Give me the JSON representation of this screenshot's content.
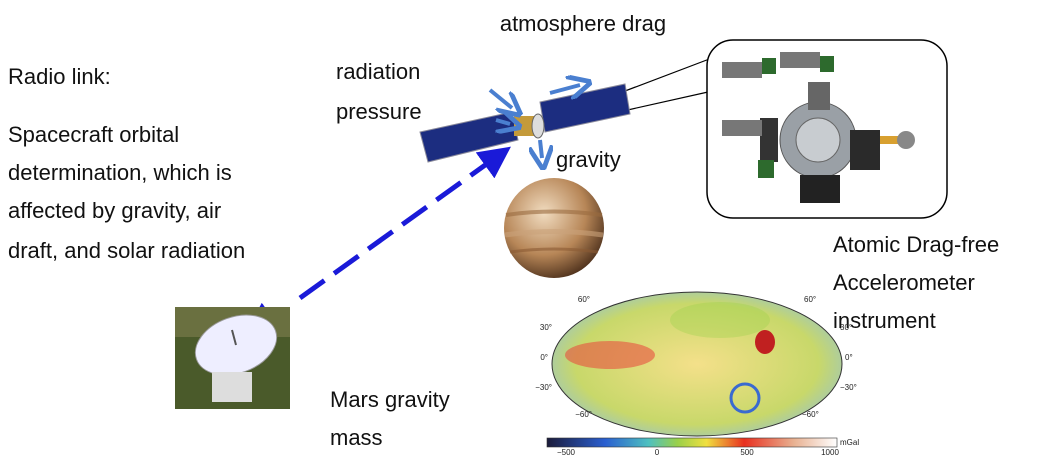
{
  "labels": {
    "atmosphere_drag": "atmosphere drag",
    "radio_link": "Radio link:",
    "orbit_description": [
      "Spacecraft orbital",
      "determination, which is",
      "affected by gravity, air",
      "draft, and solar radiation"
    ],
    "radiation_pressure": [
      "radiation",
      "pressure"
    ],
    "gravity": "gravity",
    "instrument": [
      "Atomic Drag-free",
      "Accelerometer",
      "instrument"
    ],
    "mars": [
      "Mars gravity",
      "mass"
    ]
  },
  "map": {
    "lat_labels_left": [
      "60°",
      "30°",
      "0°",
      "−30°",
      "−60°"
    ],
    "lat_labels_right": [
      "60°",
      "30°",
      "0°",
      "−30°",
      "−60°"
    ],
    "colorbar": {
      "ticks": [
        "−500",
        "0",
        "500",
        "1000"
      ],
      "unit": "mGal"
    }
  }
}
